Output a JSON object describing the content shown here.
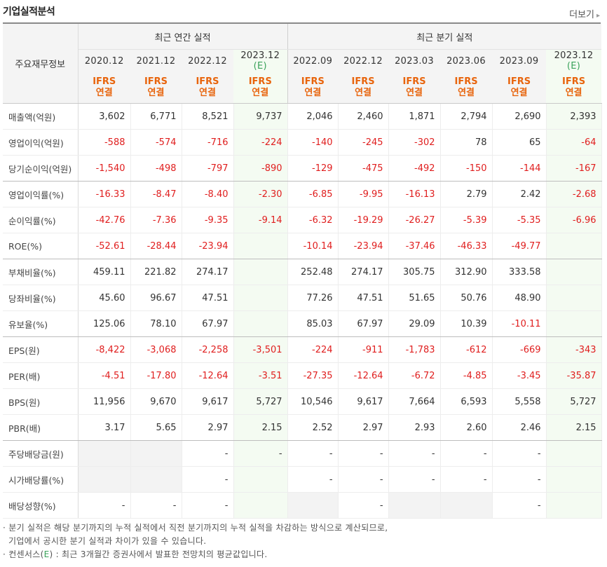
{
  "title": "기업실적분석",
  "more_label": "더보기",
  "header": {
    "corner_label": "주요재무정보",
    "group_annual": "최근 연간 실적",
    "group_quarter": "최근 분기 실적",
    "periods": [
      {
        "label": "2020.12",
        "est": ""
      },
      {
        "label": "2021.12",
        "est": ""
      },
      {
        "label": "2022.12",
        "est": ""
      },
      {
        "label": "2023.12",
        "est": "(E)"
      },
      {
        "label": "2022.09",
        "est": ""
      },
      {
        "label": "2022.12",
        "est": ""
      },
      {
        "label": "2023.03",
        "est": ""
      },
      {
        "label": "2023.06",
        "est": ""
      },
      {
        "label": "2023.09",
        "est": ""
      },
      {
        "label": "2023.12",
        "est": "(E)"
      }
    ],
    "basis_line1": "IFRS",
    "basis_line2": "연결"
  },
  "rows": [
    {
      "label": "매출액(억원)",
      "values": [
        "3,602",
        "6,771",
        "8,521",
        "9,737",
        "2,046",
        "2,460",
        "1,871",
        "2,794",
        "2,690",
        "2,393"
      ]
    },
    {
      "label": "영업이익(억원)",
      "values": [
        "-588",
        "-574",
        "-716",
        "-224",
        "-140",
        "-245",
        "-302",
        "78",
        "65",
        "-64"
      ]
    },
    {
      "label": "당기순이익(억원)",
      "values": [
        "-1,540",
        "-498",
        "-797",
        "-890",
        "-129",
        "-475",
        "-492",
        "-150",
        "-144",
        "-167"
      ]
    },
    {
      "label": "영업이익률(%)",
      "values": [
        "-16.33",
        "-8.47",
        "-8.40",
        "-2.30",
        "-6.85",
        "-9.95",
        "-16.13",
        "2.79",
        "2.42",
        "-2.68"
      ]
    },
    {
      "label": "순이익률(%)",
      "values": [
        "-42.76",
        "-7.36",
        "-9.35",
        "-9.14",
        "-6.32",
        "-19.29",
        "-26.27",
        "-5.39",
        "-5.35",
        "-6.96"
      ]
    },
    {
      "label": "ROE(%)",
      "values": [
        "-52.61",
        "-28.44",
        "-23.94",
        "",
        "-10.14",
        "-23.94",
        "-37.46",
        "-46.33",
        "-49.77",
        ""
      ]
    },
    {
      "label": "부채비율(%)",
      "values": [
        "459.11",
        "221.82",
        "274.17",
        "",
        "252.48",
        "274.17",
        "305.75",
        "312.90",
        "333.58",
        ""
      ]
    },
    {
      "label": "당좌비율(%)",
      "values": [
        "45.60",
        "96.67",
        "47.51",
        "",
        "77.26",
        "47.51",
        "51.65",
        "50.76",
        "48.90",
        ""
      ]
    },
    {
      "label": "유보율(%)",
      "values": [
        "125.06",
        "78.10",
        "67.97",
        "",
        "85.03",
        "67.97",
        "29.09",
        "10.39",
        "-10.11",
        ""
      ]
    },
    {
      "label": "EPS(원)",
      "values": [
        "-8,422",
        "-3,068",
        "-2,258",
        "-3,501",
        "-224",
        "-911",
        "-1,783",
        "-612",
        "-669",
        "-343"
      ]
    },
    {
      "label": "PER(배)",
      "values": [
        "-4.51",
        "-17.80",
        "-12.64",
        "-3.51",
        "-27.35",
        "-12.64",
        "-6.72",
        "-4.85",
        "-3.45",
        "-35.87"
      ]
    },
    {
      "label": "BPS(원)",
      "values": [
        "11,956",
        "9,670",
        "9,617",
        "5,727",
        "10,546",
        "9,617",
        "7,664",
        "6,593",
        "5,558",
        "5,727"
      ]
    },
    {
      "label": "PBR(배)",
      "values": [
        "3.17",
        "5.65",
        "2.97",
        "2.15",
        "2.52",
        "2.97",
        "2.93",
        "2.60",
        "2.46",
        "2.15"
      ]
    },
    {
      "label": "주당배당금(원)",
      "values": [
        "",
        "",
        "-",
        "-",
        "-",
        "-",
        "-",
        "-",
        "-",
        ""
      ]
    },
    {
      "label": "시가배당률(%)",
      "values": [
        "",
        "",
        "-",
        "",
        "-",
        "-",
        "-",
        "-",
        "-",
        ""
      ]
    },
    {
      "label": "배당성향(%)",
      "values": [
        "-",
        "-",
        "-",
        "",
        "",
        "-",
        "",
        "",
        "-",
        ""
      ]
    }
  ],
  "gray_cells": [
    [
      13,
      0
    ],
    [
      13,
      1
    ],
    [
      14,
      0
    ],
    [
      14,
      1
    ],
    [
      16,
      4
    ],
    [
      16,
      6
    ],
    [
      16,
      7
    ]
  ],
  "notes": {
    "line1": "· 분기 실적은 해당 분기까지의 누적 실적에서 직전 분기까지의 누적 실적을 차감하는 방식으로 계산되므로,",
    "line2": "기업에서 공시한 분기 실적과 차이가 있을 수 있습니다.",
    "line3_prefix": "· 컨센서스(",
    "line3_e": "E",
    "line3_suffix": ") : 최근 3개월간 증권사에서 발표한 전망치의 평균값입니다."
  }
}
